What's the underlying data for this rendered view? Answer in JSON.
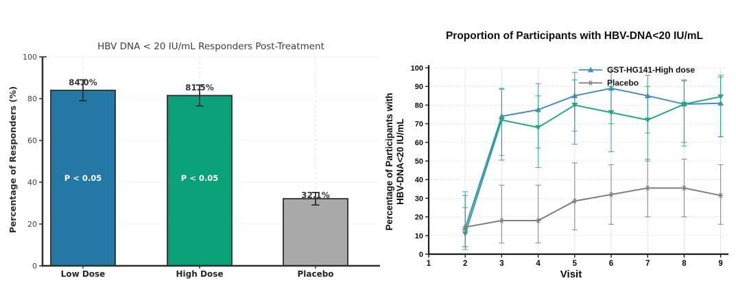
{
  "page": {
    "background": "#ffffff"
  },
  "chart_data": [
    {
      "type": "bar",
      "title": "HBV DNA < 20 IU/mL Responders Post-Treatment",
      "ylabel": "Percentage of Responders (%)",
      "xlabel": "",
      "categories": [
        "Low Dose",
        "High Dose",
        "Placebo"
      ],
      "values": [
        84.0,
        81.5,
        32.1
      ],
      "value_labels": [
        "84.0%",
        "81.5%",
        "32.1%"
      ],
      "error_minus": [
        5,
        5,
        3
      ],
      "error_plus": [
        5,
        5,
        3
      ],
      "bar_annotations": [
        "P < 0.05",
        "P < 0.05",
        null
      ],
      "bar_colors": [
        "#2478a6",
        "#0aa178",
        "#a9a9a9"
      ],
      "bar_edge_color": "#2e2e2e",
      "ylim": [
        0,
        100
      ],
      "yticks": [
        0,
        20,
        40,
        60,
        80,
        100
      ],
      "grid": true
    },
    {
      "type": "line",
      "title": "Proportion of Participants with HBV-DNA<20 IU/mL",
      "xlabel": "Visit",
      "ylabel_line1": "Percentage of Participants with",
      "ylabel_line2": "HBV-DNA<20 IU/mL",
      "x": [
        2,
        3,
        4,
        5,
        6,
        7,
        8,
        9
      ],
      "xticks": [
        1,
        2,
        3,
        4,
        5,
        6,
        7,
        8,
        9
      ],
      "xlim": [
        1,
        9
      ],
      "ylim": [
        0,
        100
      ],
      "yticks": [
        0,
        10,
        20,
        30,
        40,
        50,
        60,
        70,
        80,
        90,
        100
      ],
      "grid": true,
      "legend_position": "top-right-inside",
      "series": [
        {
          "name": "GST-HG141-High dose",
          "in_legend": true,
          "color": "#428bc6",
          "marker": "triangle-up",
          "values": [
            14,
            74,
            77.5,
            85,
            89,
            85,
            80.5,
            81
          ],
          "err_low": [
            10,
            21,
            20.5,
            19,
            19,
            20,
            20.5,
            18
          ],
          "err_high": [
            19.5,
            15,
            14,
            12.5,
            9,
            11,
            13,
            14
          ]
        },
        {
          "name": "",
          "in_legend": false,
          "color": "#25a87e",
          "marker": "triangle-down",
          "values": [
            11,
            72,
            68,
            80,
            76,
            72,
            80.5,
            84.5
          ],
          "err_low": [
            8.5,
            21.5,
            21.5,
            21,
            21,
            22,
            22.5,
            21.5
          ],
          "err_high": [
            20.5,
            16.5,
            17,
            13.5,
            14,
            18,
            12.5,
            11.5
          ]
        },
        {
          "name": "Placebo",
          "in_legend": true,
          "color": "#7d7d7d",
          "marker": "star",
          "values": [
            14.5,
            18,
            18,
            28.5,
            32,
            35.5,
            35.5,
            31.5
          ],
          "err_low": [
            10.5,
            12,
            12,
            15.5,
            16,
            15.5,
            15.5,
            15.5
          ],
          "err_high": [
            10.5,
            19,
            19,
            20.5,
            16,
            15.5,
            15.5,
            16.5
          ]
        }
      ]
    }
  ]
}
